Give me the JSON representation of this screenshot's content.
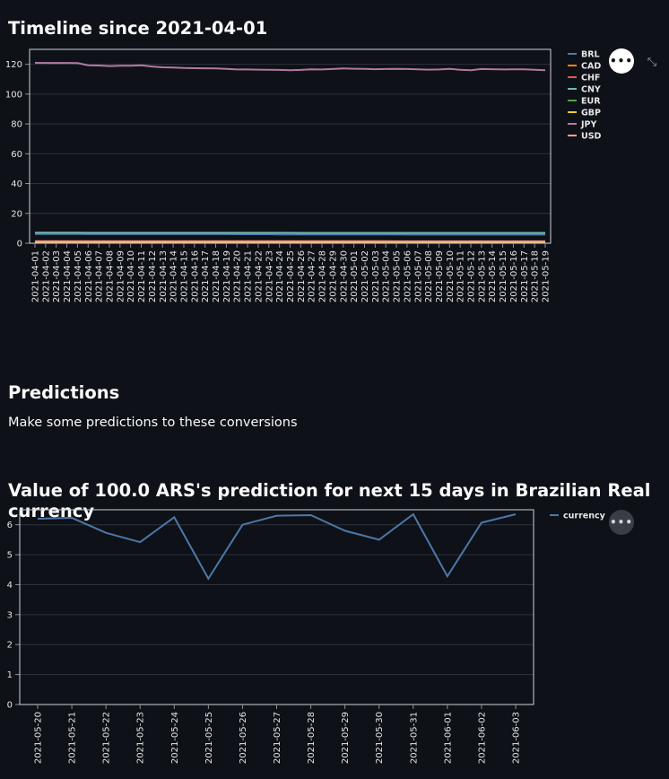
{
  "section1": {
    "title": "Timeline since 2021-04-01"
  },
  "section2": {
    "title": "Predictions",
    "description": "Make some predictions to these conversions"
  },
  "section3": {
    "title": "Value of 100.0 ARS's prediction for next 15 days in Brazilian Real currency"
  },
  "icons": {
    "more": "more-horizontal-icon",
    "expand": "fullscreen-expand-icon"
  },
  "chart_data": [
    {
      "type": "line",
      "x": [
        "2021-04-01",
        "2021-04-02",
        "2021-04-03",
        "2021-04-04",
        "2021-04-05",
        "2021-04-06",
        "2021-04-07",
        "2021-04-08",
        "2021-04-09",
        "2021-04-10",
        "2021-04-11",
        "2021-04-12",
        "2021-04-13",
        "2021-04-14",
        "2021-04-15",
        "2021-04-16",
        "2021-04-17",
        "2021-04-18",
        "2021-04-19",
        "2021-04-20",
        "2021-04-21",
        "2021-04-22",
        "2021-04-23",
        "2021-04-24",
        "2021-04-25",
        "2021-04-26",
        "2021-04-27",
        "2021-04-28",
        "2021-04-29",
        "2021-04-30",
        "2021-05-01",
        "2021-05-02",
        "2021-05-03",
        "2021-05-04",
        "2021-05-05",
        "2021-05-06",
        "2021-05-07",
        "2021-05-08",
        "2021-05-09",
        "2021-05-10",
        "2021-05-11",
        "2021-05-12",
        "2021-05-13",
        "2021-05-14",
        "2021-05-15",
        "2021-05-16",
        "2021-05-17",
        "2021-05-18",
        "2021-05-19"
      ],
      "ylim": [
        0,
        130
      ],
      "yticks": [
        0,
        20,
        40,
        60,
        80,
        100,
        120
      ],
      "legend_position": "right",
      "series": [
        {
          "name": "BRL",
          "color": "#4c78a8",
          "values": [
            6.2,
            6.2,
            6.2,
            6.2,
            6.2,
            6.1,
            6.1,
            6.1,
            6.1,
            6.1,
            6.1,
            6.1,
            6.1,
            6.1,
            6.1,
            6.1,
            6.1,
            6.1,
            6.1,
            6.0,
            6.0,
            6.0,
            6.0,
            5.9,
            5.9,
            5.9,
            5.9,
            5.9,
            5.9,
            5.9,
            5.9,
            5.9,
            5.9,
            5.9,
            5.9,
            5.8,
            5.8,
            5.8,
            5.8,
            5.8,
            5.8,
            5.8,
            5.8,
            5.8,
            5.8,
            5.8,
            5.8,
            5.8,
            5.8
          ]
        },
        {
          "name": "CAD",
          "color": "#f58518",
          "values": [
            1.35,
            1.35,
            1.35,
            1.35,
            1.35,
            1.34,
            1.34,
            1.34,
            1.34,
            1.34,
            1.34,
            1.34,
            1.34,
            1.34,
            1.34,
            1.33,
            1.33,
            1.33,
            1.33,
            1.33,
            1.33,
            1.33,
            1.33,
            1.32,
            1.32,
            1.32,
            1.32,
            1.32,
            1.32,
            1.32,
            1.32,
            1.32,
            1.32,
            1.32,
            1.31,
            1.31,
            1.31,
            1.31,
            1.31,
            1.31,
            1.31,
            1.31,
            1.31,
            1.31,
            1.31,
            1.31,
            1.31,
            1.31,
            1.31
          ]
        },
        {
          "name": "CHF",
          "color": "#e45756",
          "values": [
            1.0,
            1.0,
            1.0,
            1.0,
            1.0,
            1.0,
            1.0,
            1.0,
            1.0,
            1.0,
            1.0,
            1.0,
            1.0,
            1.0,
            1.0,
            1.0,
            1.0,
            1.0,
            1.0,
            1.0,
            1.0,
            1.0,
            1.0,
            1.0,
            1.0,
            1.0,
            1.0,
            1.0,
            1.0,
            1.0,
            1.0,
            1.0,
            1.0,
            1.0,
            1.0,
            1.0,
            1.0,
            1.0,
            1.0,
            1.0,
            1.0,
            1.0,
            1.0,
            1.0,
            1.0,
            1.0,
            1.0,
            1.0,
            1.0
          ]
        },
        {
          "name": "CNY",
          "color": "#72b7b2",
          "values": [
            7.1,
            7.1,
            7.1,
            7.1,
            7.1,
            7.0,
            7.0,
            7.0,
            7.0,
            7.0,
            7.0,
            7.0,
            7.0,
            7.0,
            7.0,
            7.0,
            7.0,
            7.0,
            7.0,
            7.0,
            7.0,
            7.0,
            7.0,
            7.0,
            7.0,
            6.9,
            6.9,
            6.9,
            6.9,
            6.9,
            6.9,
            6.9,
            6.9,
            6.9,
            6.9,
            6.9,
            6.9,
            6.9,
            6.9,
            6.9,
            6.9,
            6.9,
            6.9,
            6.9,
            6.9,
            6.9,
            6.9,
            6.9,
            6.9
          ]
        },
        {
          "name": "EUR",
          "color": "#54a24b",
          "values": [
            0.9,
            0.9,
            0.9,
            0.9,
            0.9,
            0.9,
            0.9,
            0.9,
            0.9,
            0.9,
            0.9,
            0.9,
            0.9,
            0.9,
            0.9,
            0.9,
            0.9,
            0.9,
            0.9,
            0.9,
            0.9,
            0.9,
            0.9,
            0.9,
            0.9,
            0.9,
            0.9,
            0.9,
            0.9,
            0.9,
            0.9,
            0.9,
            0.9,
            0.9,
            0.9,
            0.9,
            0.9,
            0.9,
            0.9,
            0.9,
            0.9,
            0.9,
            0.9,
            0.9,
            0.9,
            0.9,
            0.9,
            0.9,
            0.9
          ]
        },
        {
          "name": "GBP",
          "color": "#eeca3b",
          "values": [
            0.8,
            0.8,
            0.8,
            0.8,
            0.8,
            0.8,
            0.8,
            0.8,
            0.8,
            0.8,
            0.8,
            0.8,
            0.8,
            0.8,
            0.8,
            0.8,
            0.8,
            0.8,
            0.8,
            0.8,
            0.8,
            0.8,
            0.8,
            0.8,
            0.8,
            0.8,
            0.8,
            0.8,
            0.8,
            0.8,
            0.8,
            0.8,
            0.8,
            0.8,
            0.8,
            0.8,
            0.8,
            0.8,
            0.8,
            0.8,
            0.8,
            0.8,
            0.8,
            0.8,
            0.8,
            0.8,
            0.8,
            0.8,
            0.8
          ]
        },
        {
          "name": "JPY",
          "color": "#b279a2",
          "values": [
            121.0,
            120.9,
            120.9,
            120.9,
            120.8,
            119.3,
            119.2,
            118.8,
            119.0,
            119.0,
            119.3,
            118.5,
            118.0,
            117.8,
            117.5,
            117.4,
            117.3,
            117.2,
            116.9,
            116.5,
            116.5,
            116.4,
            116.3,
            116.2,
            116.0,
            116.2,
            116.6,
            116.5,
            116.8,
            117.2,
            117.0,
            116.9,
            116.7,
            116.8,
            116.9,
            116.8,
            116.6,
            116.4,
            116.5,
            116.9,
            116.3,
            116.0,
            116.8,
            116.7,
            116.5,
            116.6,
            116.6,
            116.3,
            116.0
          ]
        },
        {
          "name": "USD",
          "color": "#ff9da6",
          "values": [
            1.1,
            1.1,
            1.1,
            1.1,
            1.1,
            1.1,
            1.1,
            1.1,
            1.1,
            1.1,
            1.1,
            1.1,
            1.1,
            1.1,
            1.1,
            1.1,
            1.1,
            1.1,
            1.1,
            1.1,
            1.1,
            1.1,
            1.1,
            1.1,
            1.1,
            1.1,
            1.1,
            1.1,
            1.1,
            1.1,
            1.1,
            1.1,
            1.1,
            1.1,
            1.1,
            1.1,
            1.1,
            1.1,
            1.1,
            1.1,
            1.1,
            1.1,
            1.1,
            1.1,
            1.1,
            1.1,
            1.1,
            1.1,
            1.1
          ]
        }
      ]
    },
    {
      "type": "line",
      "x": [
        "2021-05-20",
        "2021-05-21",
        "2021-05-22",
        "2021-05-23",
        "2021-05-24",
        "2021-05-25",
        "2021-05-26",
        "2021-05-27",
        "2021-05-28",
        "2021-05-29",
        "2021-05-30",
        "2021-05-31",
        "2021-06-01",
        "2021-06-02",
        "2021-06-03"
      ],
      "ylim": [
        0,
        6.5
      ],
      "yticks": [
        0,
        1,
        2,
        3,
        4,
        5,
        6
      ],
      "legend_position": "right",
      "series": [
        {
          "name": "currency",
          "color": "#4c78a8",
          "values": [
            6.2,
            6.23,
            5.73,
            5.42,
            6.25,
            4.2,
            6.0,
            6.3,
            6.32,
            5.8,
            5.5,
            6.35,
            4.28,
            6.07,
            6.35
          ]
        }
      ]
    }
  ]
}
